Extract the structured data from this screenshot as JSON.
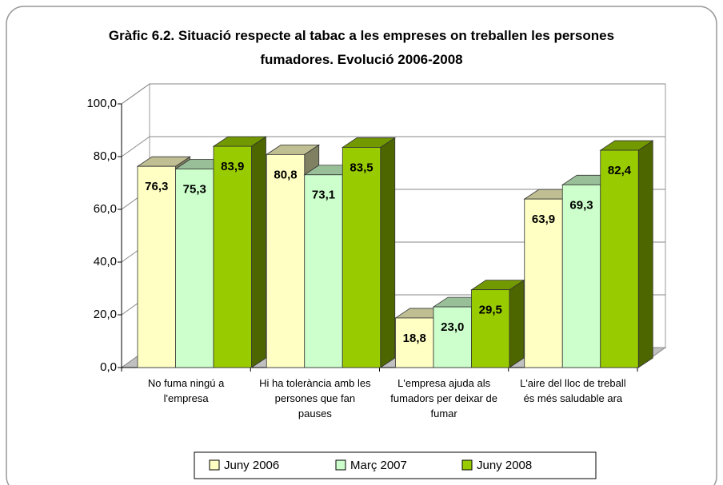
{
  "chart_data": {
    "type": "bar3d",
    "title": "Gràfic 6.2. Situació respecte al tabac a les empreses on treballen les persones fumadores. Evolució 2006-2008",
    "categories": [
      "No fuma ningú a l'empresa",
      "Hi ha tolerància amb les persones que fan pauses",
      "L'empresa ajuda als fumadors per deixar de fumar",
      "L'aire del lloc de treball és més saludable ara"
    ],
    "series": [
      {
        "name": "Juny 2006",
        "color": "#ffffc4",
        "values": [
          76.3,
          80.8,
          18.8,
          63.9
        ],
        "value_labels": [
          "76,3",
          "80,8",
          "18,8",
          "63,9"
        ]
      },
      {
        "name": "Març 2007",
        "color": "#ccffcc",
        "values": [
          75.3,
          73.1,
          23.0,
          69.3
        ],
        "value_labels": [
          "75,3",
          "73,1",
          "23,0",
          "69,3"
        ]
      },
      {
        "name": "Juny 2008",
        "color": "#99cc00",
        "values": [
          83.9,
          83.5,
          29.5,
          82.4
        ],
        "value_labels": [
          "83,9",
          "83,5",
          "29,5",
          "82,4"
        ]
      }
    ],
    "ylim": [
      0,
      100
    ],
    "yticks": [
      {
        "value": 0,
        "label": "0,0"
      },
      {
        "value": 20,
        "label": "20,0"
      },
      {
        "value": 40,
        "label": "40,0"
      },
      {
        "value": 60,
        "label": "60,0"
      },
      {
        "value": 80,
        "label": "80,0"
      },
      {
        "value": 100,
        "label": "100,0"
      }
    ],
    "grid": true,
    "legend": "bottom"
  }
}
